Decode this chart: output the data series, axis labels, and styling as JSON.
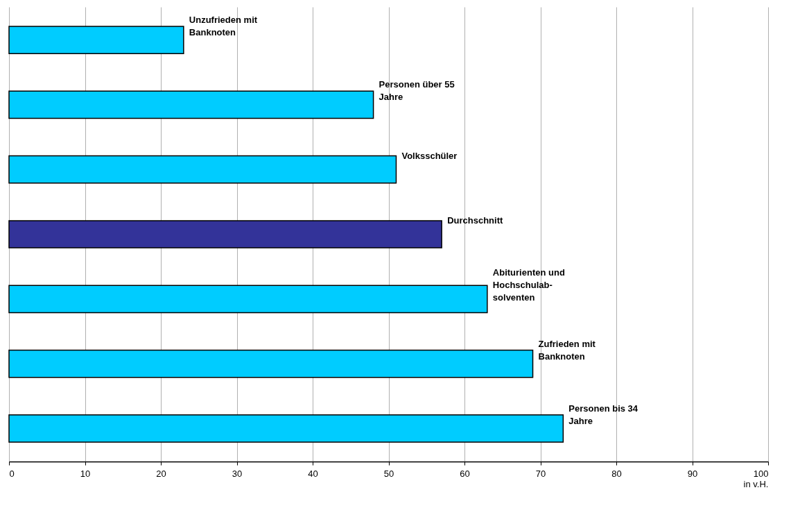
{
  "chart_data": {
    "type": "bar",
    "orientation": "horizontal",
    "categories": [
      "Unzufrieden mit\nBanknoten",
      "Personen über 55\nJahre",
      "Volksschüler",
      "Durchschnitt",
      "Abiturienten und\nHochschulab-\nsolventen",
      "Zufrieden mit\nBanknoten",
      "Personen bis 34\nJahre"
    ],
    "values": [
      23,
      48,
      51,
      57,
      63,
      69,
      73
    ],
    "colors": [
      "#00ccff",
      "#00ccff",
      "#00ccff",
      "#333399",
      "#00ccff",
      "#00ccff",
      "#00ccff"
    ],
    "xlim": [
      0,
      100
    ],
    "xticks": [
      0,
      10,
      20,
      30,
      40,
      50,
      60,
      70,
      80,
      90,
      100
    ],
    "xlabel": "in v.H.",
    "grid": "x",
    "tick_labels": "x"
  }
}
